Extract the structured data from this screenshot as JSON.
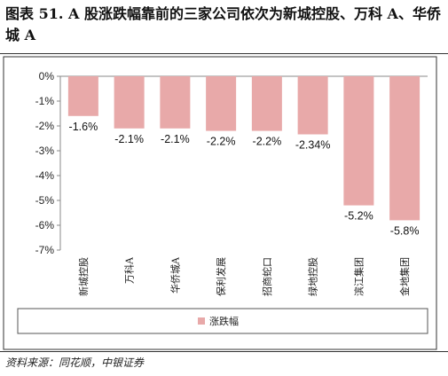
{
  "title": "图表 51. A 股涨跌幅靠前的三家公司依次为新城控股、万科 A、华侨城 A",
  "source": "资料来源：同花顺，中银证券",
  "colors": {
    "bar": "#e8a9a9",
    "axis": "#888888",
    "frame": "#333333"
  },
  "chart_data": {
    "type": "bar",
    "categories": [
      "新城控股",
      "万科A",
      "华侨城A",
      "保利发展",
      "招商蛇口",
      "绿地控股",
      "滨江集团",
      "金地集团"
    ],
    "series": [
      {
        "name": "涨跌幅",
        "values": [
          -1.6,
          -2.1,
          -2.1,
          -2.2,
          -2.2,
          -2.34,
          -5.2,
          -5.8
        ]
      }
    ],
    "data_labels": [
      "-1.6%",
      "-2.1%",
      "-2.1%",
      "-2.2%",
      "-2.2%",
      "-2.34%",
      "-5.2%",
      "-5.8%"
    ],
    "ylim": [
      -7,
      0
    ],
    "yticks": [
      "0%",
      "-1%",
      "-2%",
      "-3%",
      "-4%",
      "-5%",
      "-6%",
      "-7%"
    ],
    "legend_position": "bottom",
    "grid": false
  }
}
